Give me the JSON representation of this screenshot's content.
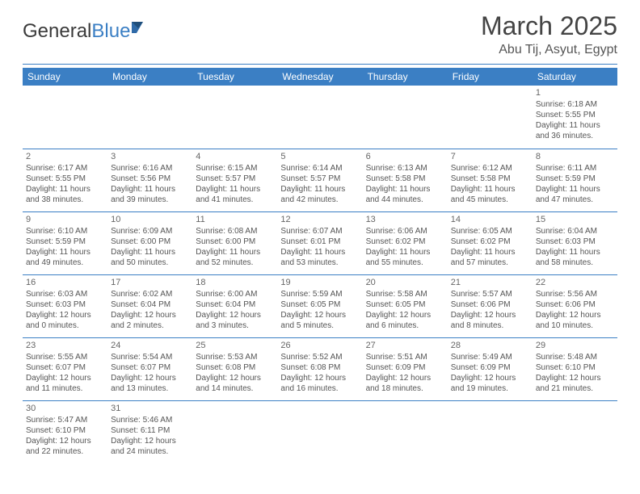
{
  "logo": {
    "text_dark": "General",
    "text_blue": "Blue"
  },
  "title": "March 2025",
  "location": "Abu Tij, Asyut, Egypt",
  "colors": {
    "header_bg": "#3b7fc4",
    "header_text": "#ffffff",
    "border": "#3b7fc4",
    "body_bg": "#ffffff",
    "text": "#555555",
    "title_text": "#444444"
  },
  "weekdays": [
    "Sunday",
    "Monday",
    "Tuesday",
    "Wednesday",
    "Thursday",
    "Friday",
    "Saturday"
  ],
  "weeks": [
    [
      null,
      null,
      null,
      null,
      null,
      null,
      {
        "d": "1",
        "sr": "Sunrise: 6:18 AM",
        "ss": "Sunset: 5:55 PM",
        "dl1": "Daylight: 11 hours",
        "dl2": "and 36 minutes."
      }
    ],
    [
      {
        "d": "2",
        "sr": "Sunrise: 6:17 AM",
        "ss": "Sunset: 5:55 PM",
        "dl1": "Daylight: 11 hours",
        "dl2": "and 38 minutes."
      },
      {
        "d": "3",
        "sr": "Sunrise: 6:16 AM",
        "ss": "Sunset: 5:56 PM",
        "dl1": "Daylight: 11 hours",
        "dl2": "and 39 minutes."
      },
      {
        "d": "4",
        "sr": "Sunrise: 6:15 AM",
        "ss": "Sunset: 5:57 PM",
        "dl1": "Daylight: 11 hours",
        "dl2": "and 41 minutes."
      },
      {
        "d": "5",
        "sr": "Sunrise: 6:14 AM",
        "ss": "Sunset: 5:57 PM",
        "dl1": "Daylight: 11 hours",
        "dl2": "and 42 minutes."
      },
      {
        "d": "6",
        "sr": "Sunrise: 6:13 AM",
        "ss": "Sunset: 5:58 PM",
        "dl1": "Daylight: 11 hours",
        "dl2": "and 44 minutes."
      },
      {
        "d": "7",
        "sr": "Sunrise: 6:12 AM",
        "ss": "Sunset: 5:58 PM",
        "dl1": "Daylight: 11 hours",
        "dl2": "and 45 minutes."
      },
      {
        "d": "8",
        "sr": "Sunrise: 6:11 AM",
        "ss": "Sunset: 5:59 PM",
        "dl1": "Daylight: 11 hours",
        "dl2": "and 47 minutes."
      }
    ],
    [
      {
        "d": "9",
        "sr": "Sunrise: 6:10 AM",
        "ss": "Sunset: 5:59 PM",
        "dl1": "Daylight: 11 hours",
        "dl2": "and 49 minutes."
      },
      {
        "d": "10",
        "sr": "Sunrise: 6:09 AM",
        "ss": "Sunset: 6:00 PM",
        "dl1": "Daylight: 11 hours",
        "dl2": "and 50 minutes."
      },
      {
        "d": "11",
        "sr": "Sunrise: 6:08 AM",
        "ss": "Sunset: 6:00 PM",
        "dl1": "Daylight: 11 hours",
        "dl2": "and 52 minutes."
      },
      {
        "d": "12",
        "sr": "Sunrise: 6:07 AM",
        "ss": "Sunset: 6:01 PM",
        "dl1": "Daylight: 11 hours",
        "dl2": "and 53 minutes."
      },
      {
        "d": "13",
        "sr": "Sunrise: 6:06 AM",
        "ss": "Sunset: 6:02 PM",
        "dl1": "Daylight: 11 hours",
        "dl2": "and 55 minutes."
      },
      {
        "d": "14",
        "sr": "Sunrise: 6:05 AM",
        "ss": "Sunset: 6:02 PM",
        "dl1": "Daylight: 11 hours",
        "dl2": "and 57 minutes."
      },
      {
        "d": "15",
        "sr": "Sunrise: 6:04 AM",
        "ss": "Sunset: 6:03 PM",
        "dl1": "Daylight: 11 hours",
        "dl2": "and 58 minutes."
      }
    ],
    [
      {
        "d": "16",
        "sr": "Sunrise: 6:03 AM",
        "ss": "Sunset: 6:03 PM",
        "dl1": "Daylight: 12 hours",
        "dl2": "and 0 minutes."
      },
      {
        "d": "17",
        "sr": "Sunrise: 6:02 AM",
        "ss": "Sunset: 6:04 PM",
        "dl1": "Daylight: 12 hours",
        "dl2": "and 2 minutes."
      },
      {
        "d": "18",
        "sr": "Sunrise: 6:00 AM",
        "ss": "Sunset: 6:04 PM",
        "dl1": "Daylight: 12 hours",
        "dl2": "and 3 minutes."
      },
      {
        "d": "19",
        "sr": "Sunrise: 5:59 AM",
        "ss": "Sunset: 6:05 PM",
        "dl1": "Daylight: 12 hours",
        "dl2": "and 5 minutes."
      },
      {
        "d": "20",
        "sr": "Sunrise: 5:58 AM",
        "ss": "Sunset: 6:05 PM",
        "dl1": "Daylight: 12 hours",
        "dl2": "and 6 minutes."
      },
      {
        "d": "21",
        "sr": "Sunrise: 5:57 AM",
        "ss": "Sunset: 6:06 PM",
        "dl1": "Daylight: 12 hours",
        "dl2": "and 8 minutes."
      },
      {
        "d": "22",
        "sr": "Sunrise: 5:56 AM",
        "ss": "Sunset: 6:06 PM",
        "dl1": "Daylight: 12 hours",
        "dl2": "and 10 minutes."
      }
    ],
    [
      {
        "d": "23",
        "sr": "Sunrise: 5:55 AM",
        "ss": "Sunset: 6:07 PM",
        "dl1": "Daylight: 12 hours",
        "dl2": "and 11 minutes."
      },
      {
        "d": "24",
        "sr": "Sunrise: 5:54 AM",
        "ss": "Sunset: 6:07 PM",
        "dl1": "Daylight: 12 hours",
        "dl2": "and 13 minutes."
      },
      {
        "d": "25",
        "sr": "Sunrise: 5:53 AM",
        "ss": "Sunset: 6:08 PM",
        "dl1": "Daylight: 12 hours",
        "dl2": "and 14 minutes."
      },
      {
        "d": "26",
        "sr": "Sunrise: 5:52 AM",
        "ss": "Sunset: 6:08 PM",
        "dl1": "Daylight: 12 hours",
        "dl2": "and 16 minutes."
      },
      {
        "d": "27",
        "sr": "Sunrise: 5:51 AM",
        "ss": "Sunset: 6:09 PM",
        "dl1": "Daylight: 12 hours",
        "dl2": "and 18 minutes."
      },
      {
        "d": "28",
        "sr": "Sunrise: 5:49 AM",
        "ss": "Sunset: 6:09 PM",
        "dl1": "Daylight: 12 hours",
        "dl2": "and 19 minutes."
      },
      {
        "d": "29",
        "sr": "Sunrise: 5:48 AM",
        "ss": "Sunset: 6:10 PM",
        "dl1": "Daylight: 12 hours",
        "dl2": "and 21 minutes."
      }
    ],
    [
      {
        "d": "30",
        "sr": "Sunrise: 5:47 AM",
        "ss": "Sunset: 6:10 PM",
        "dl1": "Daylight: 12 hours",
        "dl2": "and 22 minutes."
      },
      {
        "d": "31",
        "sr": "Sunrise: 5:46 AM",
        "ss": "Sunset: 6:11 PM",
        "dl1": "Daylight: 12 hours",
        "dl2": "and 24 minutes."
      },
      null,
      null,
      null,
      null,
      null
    ]
  ]
}
